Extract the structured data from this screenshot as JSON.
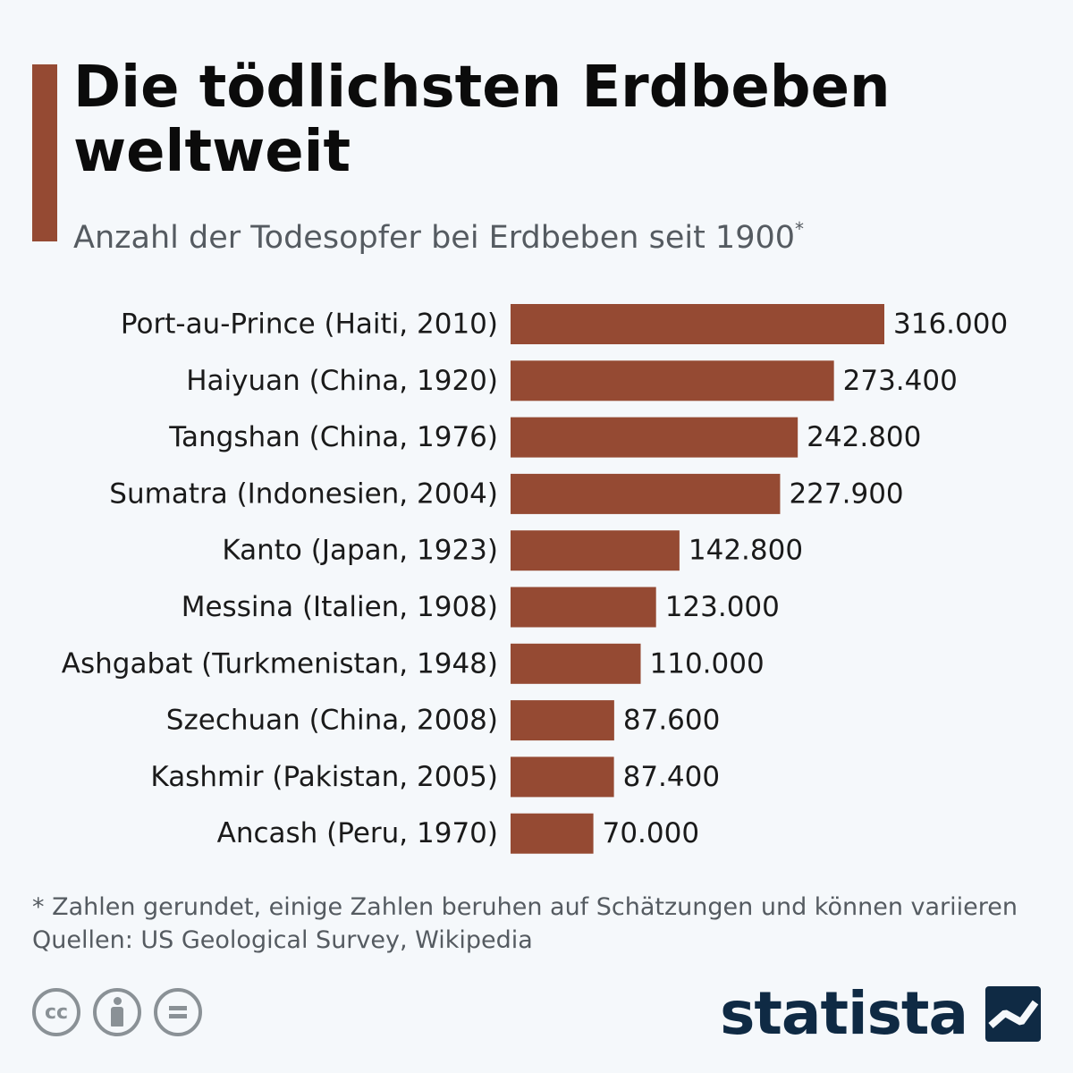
{
  "header": {
    "title": "Die tödlichsten Erdbeben weltweit",
    "subtitle": "Anzahl der Todesopfer bei Erdbeben seit 1900",
    "subtitle_mark": "*"
  },
  "colors": {
    "accent": "#954a33",
    "bar": "#954a33",
    "brand": "#0f2a44"
  },
  "chart_data": {
    "type": "bar",
    "orientation": "horizontal",
    "categories": [
      "Port-au-Prince (Haiti, 2010)",
      "Haiyuan (China, 1920)",
      "Tangshan (China, 1976)",
      "Sumatra (Indonesien, 2004)",
      "Kanto (Japan, 1923)",
      "Messina (Italien, 1908)",
      "Ashgabat (Turkmenistan, 1948)",
      "Szechuan (China, 2008)",
      "Kashmir (Pakistan, 2005)",
      "Ancash (Peru, 1970)"
    ],
    "values": [
      316000,
      273400,
      242800,
      227900,
      142800,
      123000,
      110000,
      87600,
      87400,
      70000
    ],
    "value_labels": [
      "316.000",
      "273.400",
      "242.800",
      "227.900",
      "142.800",
      "123.000",
      "110.000",
      "87.600",
      "87.400",
      "70.000"
    ],
    "grid": false,
    "legend": "none"
  },
  "footer": {
    "note": "* Zahlen gerundet, einige Zahlen beruhen auf Schätzungen und können variieren",
    "sources": "Quellen: US Geological Survey, Wikipedia",
    "license_icons": [
      "cc-icon",
      "attribution-icon",
      "no-derivatives-icon"
    ],
    "license_cc_text": "cc",
    "brand": "statista",
    "brand_logo_icon": "statista-logo-icon"
  }
}
